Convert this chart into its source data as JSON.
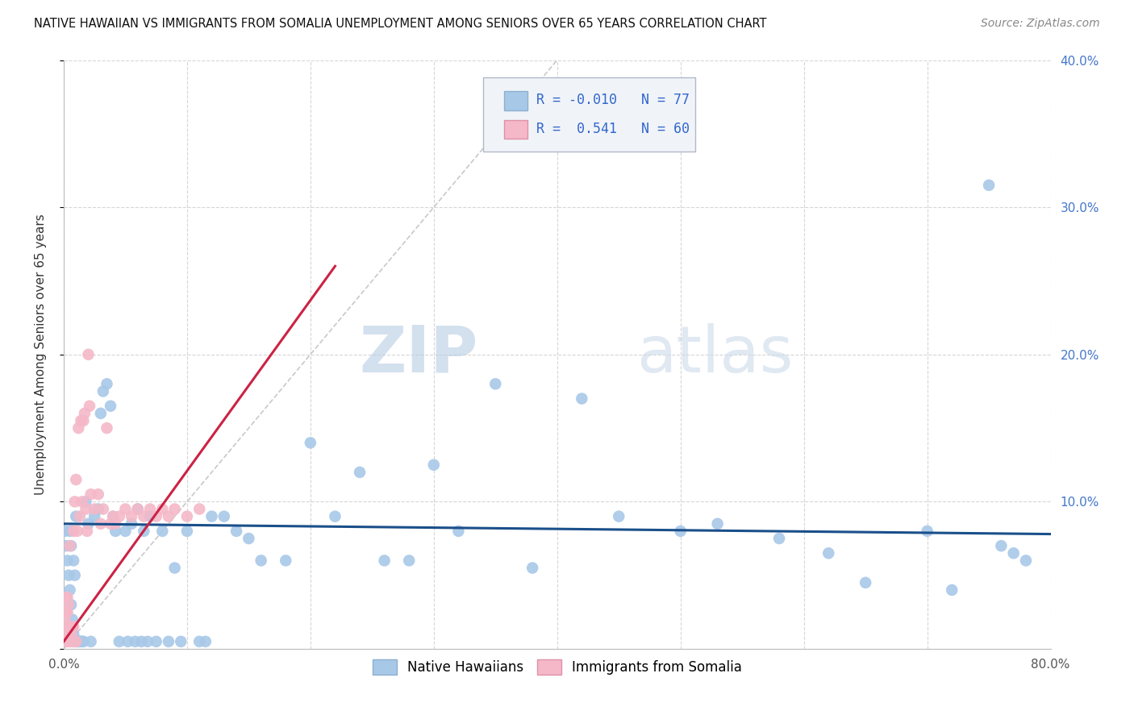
{
  "title": "NATIVE HAWAIIAN VS IMMIGRANTS FROM SOMALIA UNEMPLOYMENT AMONG SENIORS OVER 65 YEARS CORRELATION CHART",
  "source": "Source: ZipAtlas.com",
  "ylabel": "Unemployment Among Seniors over 65 years",
  "xlim": [
    0,
    0.8
  ],
  "ylim": [
    0,
    0.4
  ],
  "xticks": [
    0.0,
    0.1,
    0.2,
    0.3,
    0.4,
    0.5,
    0.6,
    0.7,
    0.8
  ],
  "yticks": [
    0.0,
    0.1,
    0.2,
    0.3,
    0.4
  ],
  "xtick_labels": [
    "0.0%",
    "",
    "",
    "",
    "",
    "",
    "",
    "",
    "80.0%"
  ],
  "ytick_labels": [
    "",
    "10.0%",
    "20.0%",
    "30.0%",
    "40.0%"
  ],
  "blue_color": "#a8c8e8",
  "pink_color": "#f4b8c8",
  "blue_line_color": "#1a4f8a",
  "pink_line_color": "#cc2244",
  "R_blue": -0.01,
  "N_blue": 77,
  "R_pink": 0.541,
  "N_pink": 60,
  "legend_label_blue": "Native Hawaiians",
  "legend_label_pink": "Immigrants from Somalia",
  "watermark_zip": "ZIP",
  "watermark_atlas": "atlas",
  "blue_x": [
    0.001,
    0.002,
    0.003,
    0.004,
    0.005,
    0.005,
    0.006,
    0.006,
    0.007,
    0.008,
    0.008,
    0.009,
    0.01,
    0.01,
    0.011,
    0.012,
    0.013,
    0.014,
    0.015,
    0.016,
    0.018,
    0.02,
    0.022,
    0.025,
    0.028,
    0.03,
    0.032,
    0.035,
    0.038,
    0.04,
    0.042,
    0.045,
    0.05,
    0.052,
    0.055,
    0.058,
    0.06,
    0.063,
    0.065,
    0.068,
    0.07,
    0.075,
    0.08,
    0.085,
    0.09,
    0.095,
    0.1,
    0.11,
    0.115,
    0.12,
    0.13,
    0.14,
    0.15,
    0.16,
    0.18,
    0.2,
    0.22,
    0.24,
    0.26,
    0.28,
    0.3,
    0.32,
    0.35,
    0.38,
    0.42,
    0.45,
    0.5,
    0.53,
    0.58,
    0.62,
    0.65,
    0.7,
    0.72,
    0.75,
    0.76,
    0.77,
    0.78
  ],
  "blue_y": [
    0.08,
    0.07,
    0.06,
    0.05,
    0.04,
    0.08,
    0.03,
    0.07,
    0.02,
    0.06,
    0.01,
    0.05,
    0.005,
    0.09,
    0.005,
    0.005,
    0.005,
    0.005,
    0.005,
    0.005,
    0.1,
    0.085,
    0.005,
    0.09,
    0.095,
    0.16,
    0.175,
    0.18,
    0.165,
    0.09,
    0.08,
    0.005,
    0.08,
    0.005,
    0.085,
    0.005,
    0.095,
    0.005,
    0.08,
    0.005,
    0.09,
    0.005,
    0.08,
    0.005,
    0.055,
    0.005,
    0.08,
    0.005,
    0.005,
    0.09,
    0.09,
    0.08,
    0.075,
    0.06,
    0.06,
    0.14,
    0.09,
    0.12,
    0.06,
    0.06,
    0.125,
    0.08,
    0.18,
    0.055,
    0.17,
    0.09,
    0.08,
    0.085,
    0.075,
    0.065,
    0.045,
    0.08,
    0.04,
    0.315,
    0.07,
    0.065,
    0.06
  ],
  "pink_x": [
    0.001,
    0.001,
    0.001,
    0.002,
    0.002,
    0.002,
    0.002,
    0.003,
    0.003,
    0.003,
    0.003,
    0.004,
    0.004,
    0.004,
    0.005,
    0.005,
    0.005,
    0.006,
    0.006,
    0.007,
    0.007,
    0.008,
    0.008,
    0.008,
    0.009,
    0.009,
    0.01,
    0.01,
    0.011,
    0.012,
    0.013,
    0.014,
    0.015,
    0.016,
    0.017,
    0.018,
    0.019,
    0.02,
    0.021,
    0.022,
    0.025,
    0.028,
    0.03,
    0.032,
    0.035,
    0.038,
    0.04,
    0.042,
    0.045,
    0.05,
    0.055,
    0.06,
    0.065,
    0.07,
    0.075,
    0.08,
    0.085,
    0.09,
    0.1,
    0.11
  ],
  "pink_y": [
    0.005,
    0.01,
    0.02,
    0.005,
    0.015,
    0.025,
    0.035,
    0.005,
    0.015,
    0.025,
    0.035,
    0.005,
    0.015,
    0.03,
    0.005,
    0.015,
    0.07,
    0.005,
    0.01,
    0.005,
    0.015,
    0.005,
    0.015,
    0.08,
    0.005,
    0.1,
    0.005,
    0.115,
    0.08,
    0.15,
    0.09,
    0.155,
    0.1,
    0.155,
    0.16,
    0.095,
    0.08,
    0.2,
    0.165,
    0.105,
    0.095,
    0.105,
    0.085,
    0.095,
    0.15,
    0.085,
    0.09,
    0.085,
    0.09,
    0.095,
    0.09,
    0.095,
    0.09,
    0.095,
    0.09,
    0.095,
    0.09,
    0.095,
    0.09,
    0.095
  ],
  "blue_trend_x": [
    0.0,
    0.8
  ],
  "blue_trend_y": [
    0.085,
    0.078
  ],
  "pink_trend_x": [
    0.0,
    0.22
  ],
  "pink_trend_y": [
    0.005,
    0.26
  ]
}
